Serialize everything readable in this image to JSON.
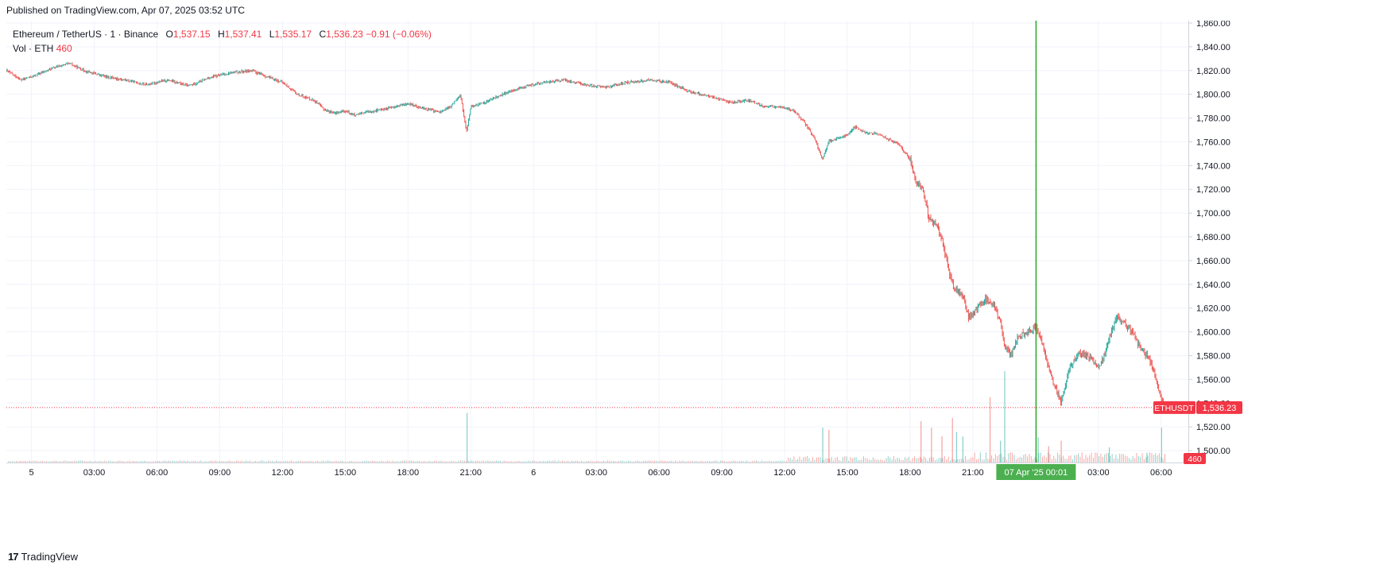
{
  "header": {
    "published": "Published on TradingView.com, Apr 07, 2025 03:52 UTC"
  },
  "legend": {
    "symbol": "Ethereum / TetherUS · 1 · Binance",
    "o_label": "O",
    "o_value": "1,537.15",
    "h_label": "H",
    "h_value": "1,537.41",
    "l_label": "L",
    "l_value": "1,535.17",
    "c_label": "C",
    "c_value": "1,536.23",
    "change": "−0.91 (−0.06%)",
    "vol_label": "Vol · ETH",
    "vol_value": "460"
  },
  "price_tag": {
    "symbol": "ETHUSDT",
    "value": "1,536.23",
    "vol": "460"
  },
  "crosshair_label": "07 Apr '25   00:01",
  "footer": {
    "brand": "TradingView",
    "mark": "17"
  },
  "colors": {
    "up": "#26a69a",
    "down": "#ef5350",
    "tag": "#f23645",
    "crosshair": "#22ab22",
    "crosshair_label_bg": "#4caf50"
  },
  "chart_data": {
    "type": "candlestick",
    "symbol": "ETHUSDT",
    "interval": "1 minute",
    "ylim": [
      1490,
      1862
    ],
    "y_ticks": [
      "1,500.00",
      "1,520.00",
      "1,540.00",
      "1,560.00",
      "1,580.00",
      "1,600.00",
      "1,620.00",
      "1,640.00",
      "1,660.00",
      "1,680.00",
      "1,700.00",
      "1,720.00",
      "1,740.00",
      "1,760.00",
      "1,780.00",
      "1,800.00",
      "1,820.00",
      "1,840.00",
      "1,860.00"
    ],
    "y_tick_values": [
      1500,
      1520,
      1540,
      1560,
      1580,
      1600,
      1620,
      1640,
      1660,
      1680,
      1700,
      1720,
      1740,
      1760,
      1780,
      1800,
      1820,
      1840,
      1860
    ],
    "x_ticks": [
      "5",
      "03:00",
      "06:00",
      "09:00",
      "12:00",
      "15:00",
      "18:00",
      "21:00",
      "6",
      "03:00",
      "06:00",
      "09:00",
      "12:00",
      "15:00",
      "18:00",
      "21:00",
      "03:00",
      "06:00"
    ],
    "x_tick_hours": [
      0,
      3,
      6,
      9,
      12,
      15,
      18,
      21,
      24,
      27,
      30,
      33,
      36,
      39,
      42,
      45,
      51,
      54
    ],
    "x_range_hours": [
      -1.2,
      55.3
    ],
    "crosshair_hours": 48.02,
    "last_price": 1536.23,
    "price_path": [
      [
        -1.2,
        1820
      ],
      [
        -0.5,
        1812
      ],
      [
        0.2,
        1816
      ],
      [
        1,
        1822
      ],
      [
        1.8,
        1826
      ],
      [
        2.5,
        1820
      ],
      [
        3.5,
        1815
      ],
      [
        4.5,
        1812
      ],
      [
        5.5,
        1808
      ],
      [
        6.5,
        1812
      ],
      [
        7.5,
        1807
      ],
      [
        8.5,
        1814
      ],
      [
        9.5,
        1818
      ],
      [
        10.5,
        1820
      ],
      [
        11.2,
        1815
      ],
      [
        12,
        1810
      ],
      [
        12.7,
        1800
      ],
      [
        13.5,
        1795
      ],
      [
        14,
        1787
      ],
      [
        14.5,
        1784
      ],
      [
        15,
        1786
      ],
      [
        15.5,
        1782
      ],
      [
        16,
        1785
      ],
      [
        17,
        1788
      ],
      [
        18,
        1792
      ],
      [
        18.8,
        1788
      ],
      [
        19.5,
        1785
      ],
      [
        20,
        1789
      ],
      [
        20.5,
        1800
      ],
      [
        20.8,
        1768
      ],
      [
        21,
        1790
      ],
      [
        21.5,
        1792
      ],
      [
        22.5,
        1800
      ],
      [
        23.5,
        1806
      ],
      [
        24.5,
        1810
      ],
      [
        25.5,
        1812
      ],
      [
        26.5,
        1808
      ],
      [
        27.5,
        1806
      ],
      [
        28.5,
        1810
      ],
      [
        29.5,
        1812
      ],
      [
        30.5,
        1810
      ],
      [
        31,
        1806
      ],
      [
        31.5,
        1802
      ],
      [
        32.5,
        1798
      ],
      [
        33.5,
        1793
      ],
      [
        34.2,
        1795
      ],
      [
        35,
        1790
      ],
      [
        36,
        1789
      ],
      [
        36.5,
        1785
      ],
      [
        37,
        1775
      ],
      [
        37.5,
        1760
      ],
      [
        37.8,
        1745
      ],
      [
        38.1,
        1760
      ],
      [
        38.5,
        1763
      ],
      [
        39,
        1766
      ],
      [
        39.4,
        1773
      ],
      [
        39.8,
        1768
      ],
      [
        40.4,
        1767
      ],
      [
        41,
        1762
      ],
      [
        41.5,
        1757
      ],
      [
        42,
        1745
      ],
      [
        42.3,
        1725
      ],
      [
        42.6,
        1720
      ],
      [
        42.9,
        1695
      ],
      [
        43.3,
        1690
      ],
      [
        43.6,
        1672
      ],
      [
        44,
        1640
      ],
      [
        44.5,
        1630
      ],
      [
        44.8,
        1612
      ],
      [
        45.2,
        1620
      ],
      [
        45.6,
        1628
      ],
      [
        46,
        1622
      ],
      [
        46.3,
        1610
      ],
      [
        46.5,
        1590
      ],
      [
        46.8,
        1580
      ],
      [
        47.2,
        1597
      ],
      [
        47.7,
        1600
      ],
      [
        48,
        1606
      ],
      [
        48.3,
        1590
      ],
      [
        48.7,
        1565
      ],
      [
        49.2,
        1540
      ],
      [
        49.6,
        1568
      ],
      [
        50,
        1582
      ],
      [
        50.5,
        1580
      ],
      [
        51,
        1570
      ],
      [
        51.3,
        1580
      ],
      [
        51.6,
        1600
      ],
      [
        51.9,
        1612
      ],
      [
        52.3,
        1606
      ],
      [
        52.7,
        1598
      ],
      [
        53,
        1586
      ],
      [
        53.3,
        1580
      ],
      [
        53.6,
        1570
      ],
      [
        53.9,
        1550
      ],
      [
        54.05,
        1542
      ],
      [
        54.15,
        1536.23
      ]
    ],
    "volume_ylim": [
      0,
      460
    ],
    "volume_bars": [
      [
        20.8,
        228,
        "up"
      ],
      [
        38.1,
        150,
        "down"
      ],
      [
        37.8,
        160,
        "up"
      ],
      [
        42.5,
        190,
        "down"
      ],
      [
        43,
        160,
        "down"
      ],
      [
        43.5,
        120,
        "down"
      ],
      [
        44,
        205,
        "down"
      ],
      [
        44.2,
        140,
        "up"
      ],
      [
        44.5,
        120,
        "up"
      ],
      [
        45.8,
        300,
        "down"
      ],
      [
        46.3,
        100,
        "up"
      ],
      [
        46.5,
        420,
        "up"
      ],
      [
        48.1,
        115,
        "up"
      ],
      [
        48.6,
        75,
        "down"
      ],
      [
        49.2,
        100,
        "down"
      ],
      [
        51.5,
        70,
        "up"
      ],
      [
        53.3,
        45,
        "up"
      ],
      [
        54,
        160,
        "up"
      ]
    ]
  }
}
